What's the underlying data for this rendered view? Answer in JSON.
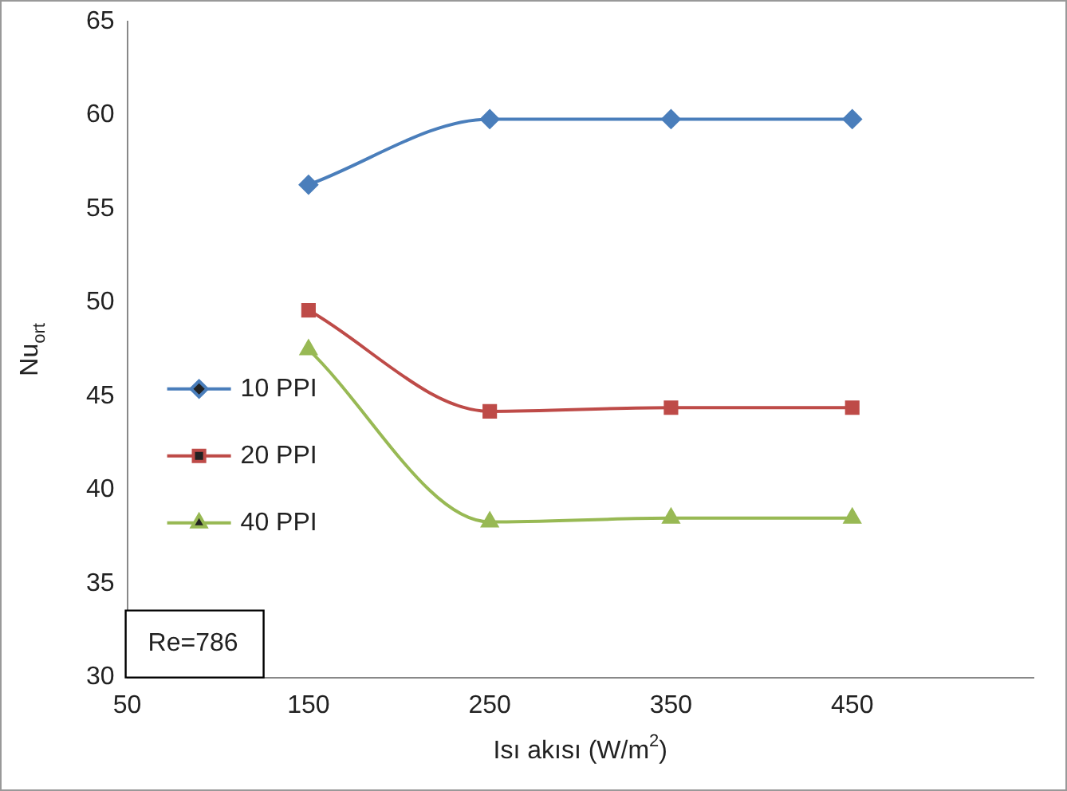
{
  "chart_data": {
    "type": "line",
    "xlabel": "Isı akısı (W/m$^{2}$)",
    "ylabel": "Nu$_{ort}$",
    "x": [
      150,
      250,
      350,
      450
    ],
    "series": [
      {
        "name": "10 PPI",
        "color": "#4a7ebb",
        "marker": "diamond",
        "values": [
          56.3,
          59.8,
          59.8,
          59.8
        ]
      },
      {
        "name": "20 PPI",
        "color": "#be4b48",
        "marker": "square",
        "values": [
          49.6,
          44.2,
          44.4,
          44.4
        ]
      },
      {
        "name": "40 PPI",
        "color": "#98b954",
        "marker": "triangle",
        "values": [
          47.5,
          38.3,
          38.5,
          38.5
        ]
      }
    ],
    "xlim": [
      50,
      550
    ],
    "xticks": [
      50,
      150,
      250,
      350,
      450
    ],
    "ylim": [
      30,
      65
    ],
    "yticks": [
      30,
      35,
      40,
      45,
      50,
      55,
      60,
      65
    ],
    "grid": false,
    "legend": "left",
    "annotations": [
      "Re=786"
    ]
  }
}
